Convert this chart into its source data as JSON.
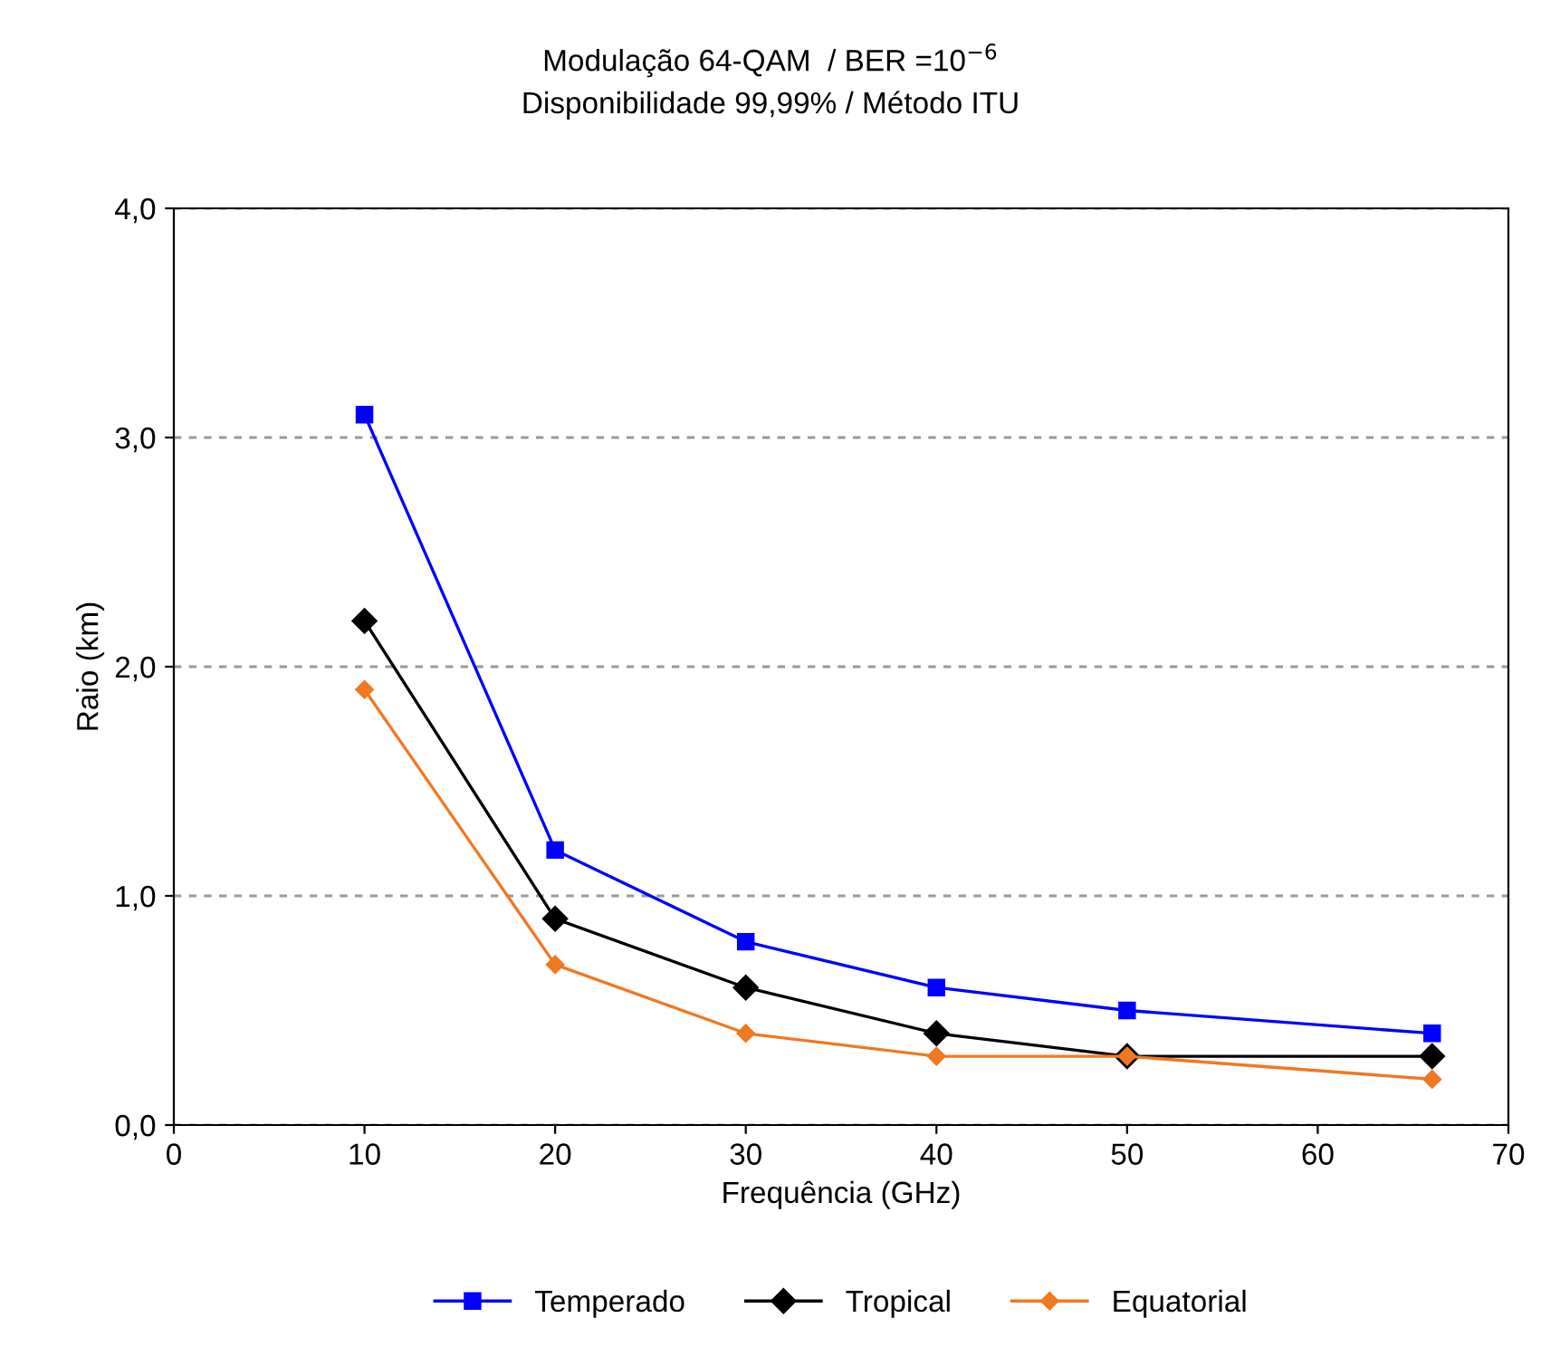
{
  "chart_data": {
    "type": "line",
    "title": "Modulação 64-QAM  / BER =10$^{−6}$\nDisponibilidade 99,99% / Método ITU",
    "xlabel": "Frequência (GHz)",
    "ylabel": "Raio (km)",
    "x": [
      10,
      20,
      30,
      40,
      50,
      66
    ],
    "series": [
      {
        "name": "Temperado",
        "color": "#0000ff",
        "marker": "square",
        "values": [
          3.1,
          1.2,
          0.8,
          0.6,
          0.5,
          0.4
        ]
      },
      {
        "name": "Tropical",
        "color": "#000000",
        "marker": "diamond",
        "values": [
          2.2,
          0.9,
          0.6,
          0.4,
          0.3,
          0.3
        ]
      },
      {
        "name": "Equatorial",
        "color": "#f07820",
        "marker": "diamond",
        "values": [
          1.9,
          0.7,
          0.4,
          0.3,
          0.3,
          0.2
        ]
      }
    ],
    "xlim": [
      0,
      70
    ],
    "xticks": [
      0,
      10,
      20,
      30,
      40,
      50,
      60,
      70
    ],
    "ylim": [
      0,
      4
    ],
    "yticks": [
      {
        "value": 0,
        "label": "0,0"
      },
      {
        "value": 1,
        "label": "1,0"
      },
      {
        "value": 2,
        "label": "2,0"
      },
      {
        "value": 3,
        "label": "3,0"
      },
      {
        "value": 4,
        "label": "4,0"
      }
    ],
    "grid": "y",
    "legend": "bottom",
    "line_style": "solid"
  }
}
